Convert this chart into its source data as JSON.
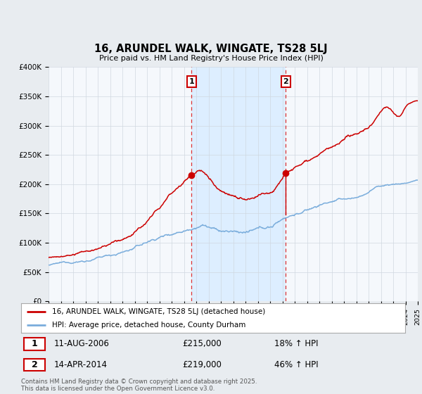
{
  "title": "16, ARUNDEL WALK, WINGATE, TS28 5LJ",
  "subtitle": "Price paid vs. HM Land Registry's House Price Index (HPI)",
  "ylim": [
    0,
    400000
  ],
  "yticks": [
    0,
    50000,
    100000,
    150000,
    200000,
    250000,
    300000,
    350000,
    400000
  ],
  "ytick_labels": [
    "£0",
    "£50K",
    "£100K",
    "£150K",
    "£200K",
    "£250K",
    "£300K",
    "£350K",
    "£400K"
  ],
  "sale1_date": 2006.61,
  "sale1_price": 215000,
  "sale1_label": "1",
  "sale1_display": "11-AUG-2006",
  "sale1_amount": "£215,000",
  "sale1_hpi": "18% ↑ HPI",
  "sale2_date": 2014.28,
  "sale2_price": 219000,
  "sale2_label": "2",
  "sale2_display": "14-APR-2014",
  "sale2_amount": "£219,000",
  "sale2_hpi": "46% ↑ HPI",
  "red_color": "#cc0000",
  "blue_color": "#7aaddc",
  "shade_color": "#ddeeff",
  "background_color": "#e8ecf0",
  "plot_bg": "#f5f8fc",
  "grid_color": "#d0d8e0",
  "legend_line1": "16, ARUNDEL WALK, WINGATE, TS28 5LJ (detached house)",
  "legend_line2": "HPI: Average price, detached house, County Durham",
  "footnote": "Contains HM Land Registry data © Crown copyright and database right 2025.\nThis data is licensed under the Open Government Licence v3.0.",
  "xstart": 1995,
  "xend": 2025
}
